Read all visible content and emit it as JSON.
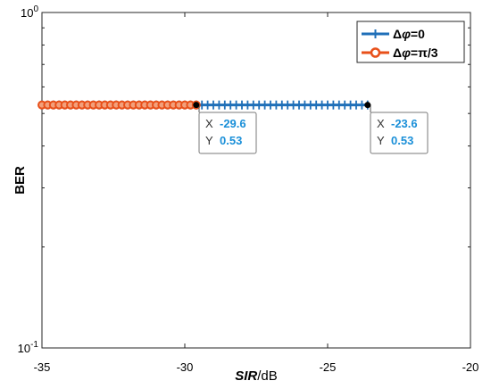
{
  "chart_data": {
    "type": "line",
    "x_axis": {
      "label_prefix": "SIR",
      "label_suffix": "/dB",
      "lim": [
        -35,
        -20
      ],
      "ticks": [
        -35,
        -30,
        -25,
        -20
      ],
      "tick_labels": [
        "-35",
        "-30",
        "-25",
        "-20"
      ]
    },
    "y_axis": {
      "label": "BER",
      "scale": "log",
      "lim": [
        0.1,
        1
      ],
      "ticks": [
        {
          "value": 1,
          "base": "10",
          "exp": "0"
        },
        {
          "value": 0.1,
          "base": "10",
          "exp": "-1"
        }
      ]
    },
    "grid": false,
    "legend": {
      "placement": "top-right",
      "entries": [
        {
          "prefix": "Δ",
          "symbol": "φ",
          "suffix": "=0"
        },
        {
          "prefix": "Δ",
          "symbol": "φ",
          "suffix": "=π/3"
        }
      ]
    },
    "series": [
      {
        "color": "#1f6fb8",
        "marker": "plus",
        "x_start": -35,
        "x_end": -23.6,
        "step": 0.2,
        "y": 0.53
      },
      {
        "color": "#e8501a",
        "marker": "circle",
        "x_start": -35,
        "x_end": -29.6,
        "step": 0.2,
        "y": 0.53
      }
    ],
    "datatips": [
      {
        "x_label": "X",
        "x_value": "-29.6",
        "y_label": "Y",
        "y_value": "0.53",
        "x": -29.6,
        "y": 0.53
      },
      {
        "x_label": "X",
        "x_value": "-23.6",
        "y_label": "Y",
        "y_value": "0.53",
        "x": -23.6,
        "y": 0.53
      }
    ]
  }
}
